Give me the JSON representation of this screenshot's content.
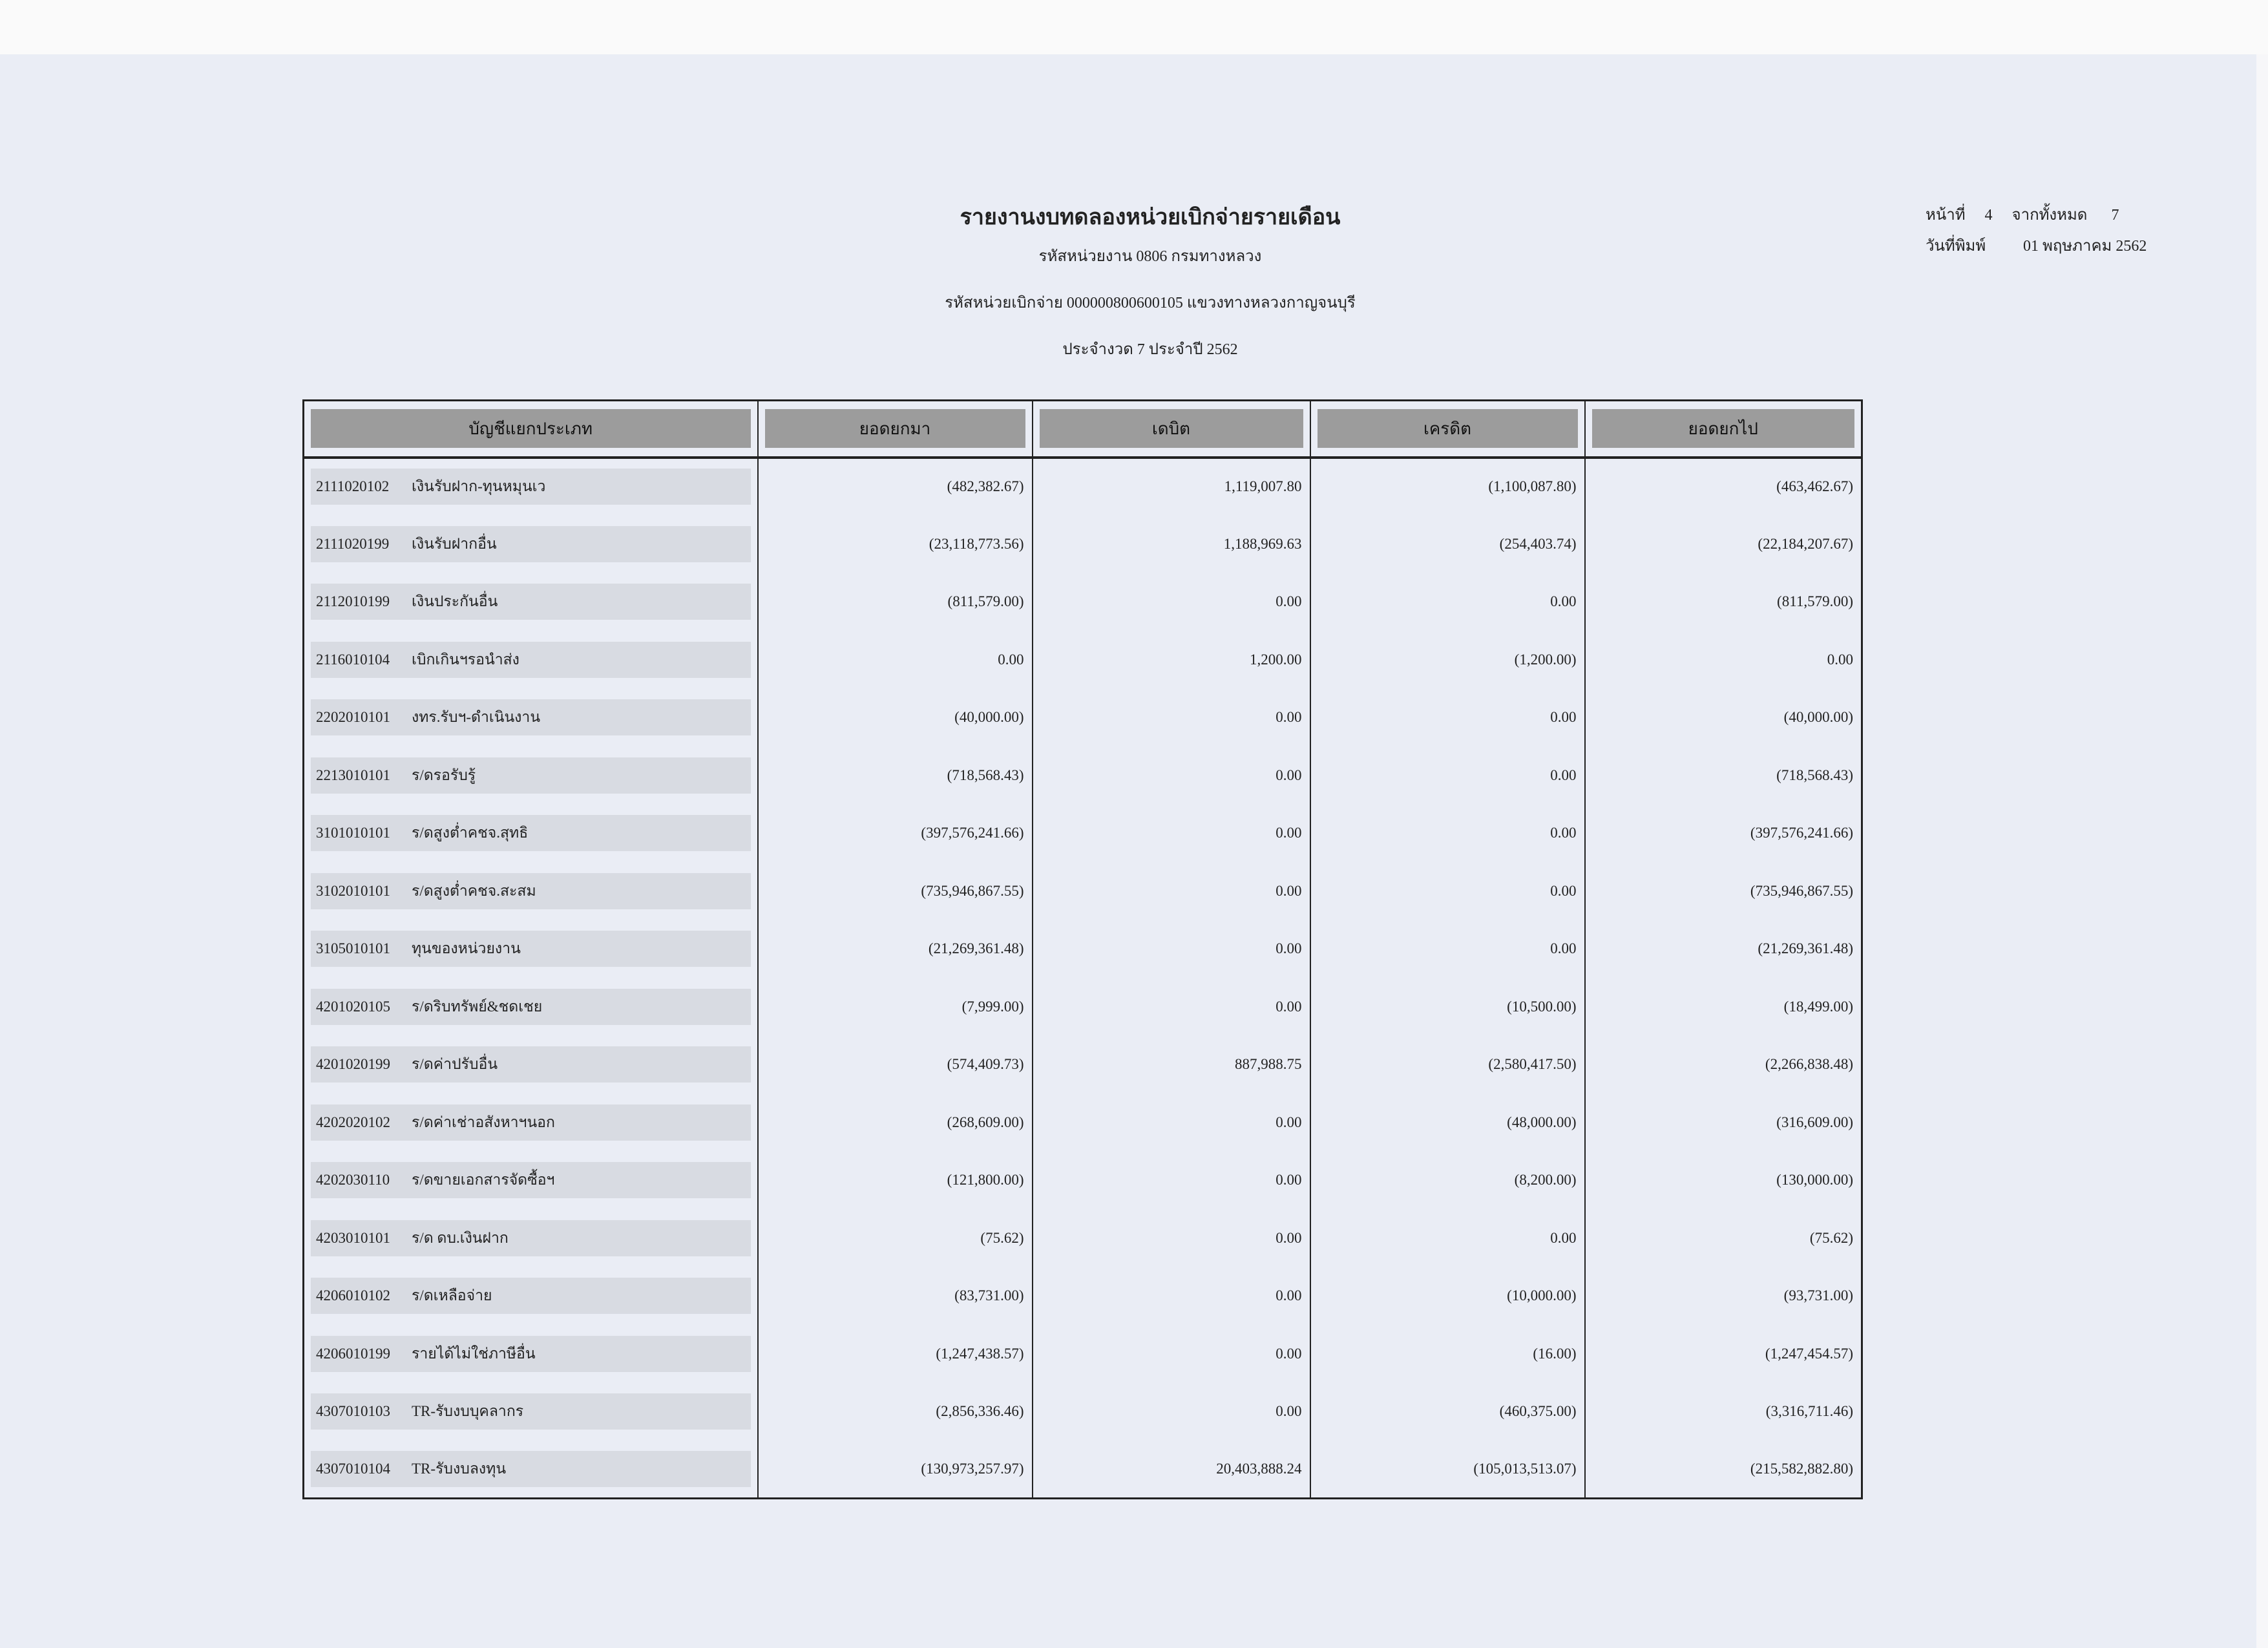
{
  "header": {
    "title": "รายงานงบทดลองหน่วยเบิกจ่ายรายเดือน",
    "agency": "รหัสหน่วยงาน 0806 กรมทางหลวง",
    "disbursing_unit": "รหัสหน่วยเบิกจ่าย 000000800600105 แขวงทางหลวงกาญจนบุรี",
    "period": "ประจำงวด 7 ประจำปี 2562",
    "page_label": "หน้าที่",
    "page": "4",
    "of_label": "จากทั้งหมด",
    "total_pages": "7",
    "print_date_label": "วันที่พิมพ์",
    "print_date": "01 พฤษภาคม 2562"
  },
  "columns": [
    "บัญชีแยกประเภท",
    "ยอดยกมา",
    "เดบิต",
    "เครดิต",
    "ยอดยกไป"
  ],
  "rows": [
    {
      "code": "2111020102",
      "name": "เงินรับฝาก-ทุนหมุนเว",
      "bf": "(482,382.67)",
      "dr": "1,119,007.80",
      "cr": "(1,100,087.80)",
      "cf": "(463,462.67)"
    },
    {
      "code": "2111020199",
      "name": "เงินรับฝากอื่น",
      "bf": "(23,118,773.56)",
      "dr": "1,188,969.63",
      "cr": "(254,403.74)",
      "cf": "(22,184,207.67)"
    },
    {
      "code": "2112010199",
      "name": "เงินประกันอื่น",
      "bf": "(811,579.00)",
      "dr": "0.00",
      "cr": "0.00",
      "cf": "(811,579.00)"
    },
    {
      "code": "2116010104",
      "name": "เบิกเกินฯรอนำส่ง",
      "bf": "0.00",
      "dr": "1,200.00",
      "cr": "(1,200.00)",
      "cf": "0.00"
    },
    {
      "code": "2202010101",
      "name": "งทร.รับฯ-ดำเนินงาน",
      "bf": "(40,000.00)",
      "dr": "0.00",
      "cr": "0.00",
      "cf": "(40,000.00)"
    },
    {
      "code": "2213010101",
      "name": "ร/ดรอรับรู้",
      "bf": "(718,568.43)",
      "dr": "0.00",
      "cr": "0.00",
      "cf": "(718,568.43)"
    },
    {
      "code": "3101010101",
      "name": "ร/ดสูงต่ำคชจ.สุทธิ",
      "bf": "(397,576,241.66)",
      "dr": "0.00",
      "cr": "0.00",
      "cf": "(397,576,241.66)"
    },
    {
      "code": "3102010101",
      "name": "ร/ดสูงต่ำคชจ.สะสม",
      "bf": "(735,946,867.55)",
      "dr": "0.00",
      "cr": "0.00",
      "cf": "(735,946,867.55)"
    },
    {
      "code": "3105010101",
      "name": "ทุนของหน่วยงาน",
      "bf": "(21,269,361.48)",
      "dr": "0.00",
      "cr": "0.00",
      "cf": "(21,269,361.48)"
    },
    {
      "code": "4201020105",
      "name": "ร/ดริบทรัพย์&ชดเชย",
      "bf": "(7,999.00)",
      "dr": "0.00",
      "cr": "(10,500.00)",
      "cf": "(18,499.00)"
    },
    {
      "code": "4201020199",
      "name": "ร/ดค่าปรับอื่น",
      "bf": "(574,409.73)",
      "dr": "887,988.75",
      "cr": "(2,580,417.50)",
      "cf": "(2,266,838.48)"
    },
    {
      "code": "4202020102",
      "name": "ร/ดค่าเช่าอสังหาฯนอก",
      "bf": "(268,609.00)",
      "dr": "0.00",
      "cr": "(48,000.00)",
      "cf": "(316,609.00)"
    },
    {
      "code": "4202030110",
      "name": "ร/ดขายเอกสารจัดซื้อฯ",
      "bf": "(121,800.00)",
      "dr": "0.00",
      "cr": "(8,200.00)",
      "cf": "(130,000.00)"
    },
    {
      "code": "4203010101",
      "name": "ร/ด ดบ.เงินฝาก",
      "bf": "(75.62)",
      "dr": "0.00",
      "cr": "0.00",
      "cf": "(75.62)"
    },
    {
      "code": "4206010102",
      "name": "ร/ดเหลือจ่าย",
      "bf": "(83,731.00)",
      "dr": "0.00",
      "cr": "(10,000.00)",
      "cf": "(93,731.00)"
    },
    {
      "code": "4206010199",
      "name": "รายได้ไม่ใช่ภาษีอื่น",
      "bf": "(1,247,438.57)",
      "dr": "0.00",
      "cr": "(16.00)",
      "cf": "(1,247,454.57)"
    },
    {
      "code": "4307010103",
      "name": "TR-รับงบบุคลากร",
      "bf": "(2,856,336.46)",
      "dr": "0.00",
      "cr": "(460,375.00)",
      "cf": "(3,316,711.46)"
    },
    {
      "code": "4307010104",
      "name": "TR-รับงบลงทุน",
      "bf": "(130,973,257.97)",
      "dr": "20,403,888.24",
      "cr": "(105,013,513.07)",
      "cf": "(215,582,882.80)"
    }
  ]
}
